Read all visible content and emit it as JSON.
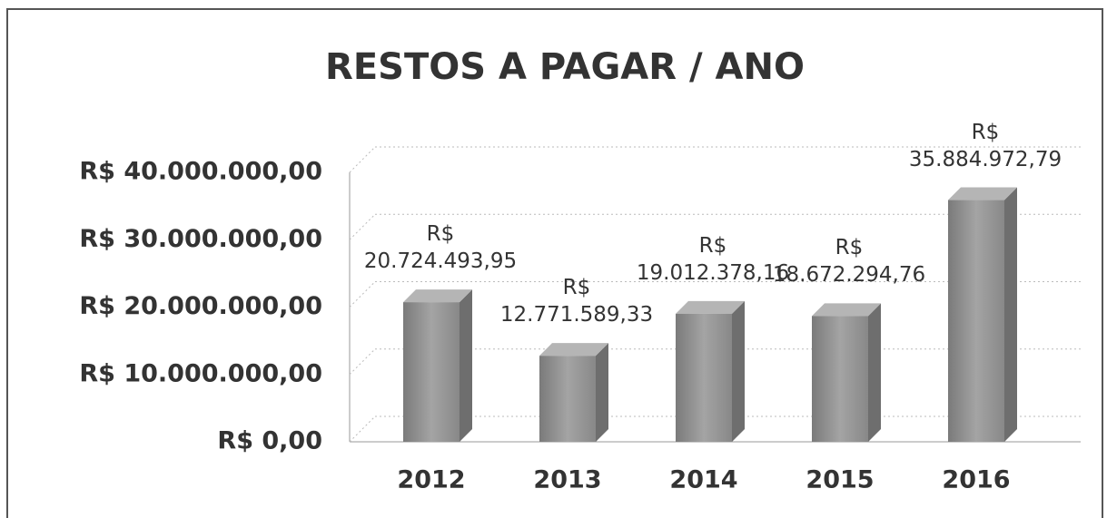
{
  "chart_data": {
    "type": "bar",
    "title": "RESTOS A PAGAR / ANO",
    "categories": [
      "2012",
      "2013",
      "2014",
      "2015",
      "2016"
    ],
    "values": [
      20724493.95,
      12771589.33,
      19012378.16,
      18672294.76,
      35884972.79
    ],
    "value_labels": [
      "R$ 20.724.493,95",
      "R$ 12.771.589,33",
      "R$ 19.012.378,16",
      "R$ 18.672.294,76",
      "R$ 35.884.972,79"
    ],
    "color": "#8c8c8c",
    "ylim": [
      0,
      40000000
    ],
    "yticks": [
      {
        "value": 0,
        "label": "R$ 0,00"
      },
      {
        "value": 10000000,
        "label": "R$ 10.000.000,00"
      },
      {
        "value": 20000000,
        "label": "R$ 20.000.000,00"
      },
      {
        "value": 30000000,
        "label": "R$ 30.000.000,00"
      },
      {
        "value": 40000000,
        "label": "R$ 40.000.000,00"
      }
    ],
    "grid": true
  }
}
